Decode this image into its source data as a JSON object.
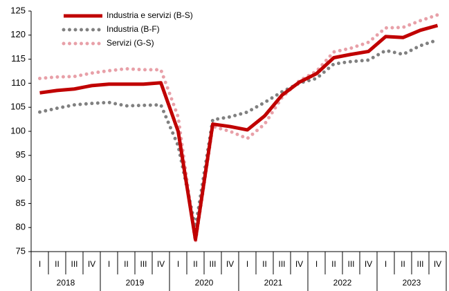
{
  "chart_data": {
    "type": "line",
    "categories": [
      "I",
      "II",
      "III",
      "IV",
      "I",
      "II",
      "III",
      "IV",
      "I",
      "II",
      "III",
      "IV",
      "I",
      "II",
      "III",
      "IV",
      "I",
      "II",
      "III",
      "IV",
      "I",
      "II",
      "III",
      "IV"
    ],
    "years": [
      "2018",
      "2019",
      "2020",
      "2021",
      "2022",
      "2023"
    ],
    "series": [
      {
        "name": "Industria e servizi (B-S)",
        "color": "#c00000",
        "style": "solid",
        "values": [
          108,
          108.5,
          108.8,
          109.5,
          109.8,
          109.8,
          109.8,
          110.1,
          100,
          77.5,
          101.5,
          101,
          100.3,
          103.2,
          107.5,
          110.2,
          112,
          115.3,
          116,
          116.6,
          119.7,
          119.5,
          121,
          122
        ]
      },
      {
        "name": "Industria (B-F)",
        "color": "#808080",
        "style": "dotted",
        "values": [
          104,
          104.8,
          105.5,
          105.8,
          106,
          105.3,
          105.4,
          105.5,
          97,
          80,
          102.4,
          103,
          104,
          106,
          108.2,
          110,
          111,
          114,
          114.5,
          114.8,
          116.8,
          116,
          117.8,
          119
        ]
      },
      {
        "name": "Servizi (G-S)",
        "color": "#e8a0a8",
        "style": "dotted",
        "values": [
          111,
          111.3,
          111.4,
          112.1,
          112.6,
          113,
          112.8,
          112.8,
          103,
          77,
          101,
          100,
          98.5,
          101.5,
          107,
          110.5,
          112.5,
          116.5,
          117.3,
          118.5,
          121.5,
          121.6,
          123,
          124.2
        ]
      }
    ],
    "ylim": [
      75,
      125
    ],
    "yticks": [
      75,
      80,
      85,
      90,
      95,
      100,
      105,
      110,
      115,
      120,
      125
    ],
    "grid": false
  }
}
